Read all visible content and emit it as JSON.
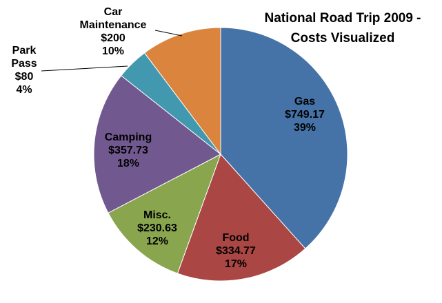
{
  "chart_data": {
    "type": "pie",
    "title_lines": [
      "National Road Trip 2009 -",
      "Costs Visualized"
    ],
    "slices": [
      {
        "name": "Gas",
        "value_label": "$749.17",
        "percent_label": "39%",
        "value": 749.17,
        "color": "#4572A7"
      },
      {
        "name": "Food",
        "value_label": "$334.77",
        "percent_label": "17%",
        "value": 334.77,
        "color": "#AA4643"
      },
      {
        "name": "Misc.",
        "value_label": "$230.63",
        "percent_label": "12%",
        "value": 230.63,
        "color": "#89A54E"
      },
      {
        "name": "Camping",
        "value_label": "$357.73",
        "percent_label": "18%",
        "value": 357.73,
        "color": "#71588F"
      },
      {
        "name_lines": [
          "Park",
          "Pass"
        ],
        "value_label": "$80",
        "percent_label": "4%",
        "value": 80,
        "color": "#4198AF"
      },
      {
        "name_lines": [
          "Car",
          "Maintenance"
        ],
        "value_label": "$200",
        "percent_label": "10%",
        "value": 200,
        "color": "#DB843D"
      }
    ]
  }
}
